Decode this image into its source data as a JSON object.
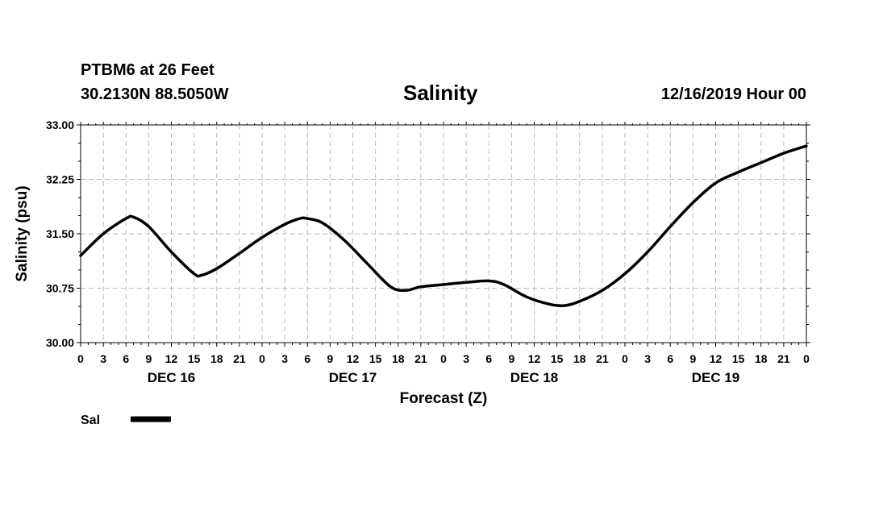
{
  "header": {
    "station": "PTBM6 at 26 Feet",
    "coords": "30.2130N 88.5050W",
    "title": "Salinity",
    "issued": "12/16/2019 Hour 00"
  },
  "chart_data": {
    "type": "line",
    "title": "Salinity",
    "xlabel": "Forecast (Z)",
    "ylabel": "Salinity (psu)",
    "ylim": [
      30.0,
      33.0
    ],
    "yticks": [
      "30.00",
      "30.75",
      "31.50",
      "32.25",
      "33.00"
    ],
    "x_hours": [
      0,
      96
    ],
    "xtick_labels": [
      "0",
      "3",
      "6",
      "9",
      "12",
      "15",
      "18",
      "21",
      "0",
      "3",
      "6",
      "9",
      "12",
      "15",
      "18",
      "21",
      "0",
      "3",
      "6",
      "9",
      "12",
      "15",
      "18",
      "21",
      "0",
      "3",
      "6",
      "9",
      "12",
      "15",
      "18",
      "21",
      "0"
    ],
    "day_labels": [
      "DEC 16",
      "DEC 17",
      "DEC 18",
      "DEC 19"
    ],
    "grid": true,
    "legend": {
      "placement": "bottom-left",
      "color": "#000000"
    },
    "series": [
      {
        "name": "Sal",
        "color": "#000000",
        "points": [
          [
            0,
            31.2
          ],
          [
            3,
            31.5
          ],
          [
            6,
            31.71
          ],
          [
            7,
            31.73
          ],
          [
            9,
            31.6
          ],
          [
            12,
            31.25
          ],
          [
            15,
            30.95
          ],
          [
            16,
            30.93
          ],
          [
            18,
            31.02
          ],
          [
            21,
            31.23
          ],
          [
            24,
            31.45
          ],
          [
            27,
            31.63
          ],
          [
            29,
            31.71
          ],
          [
            30,
            31.71
          ],
          [
            32,
            31.65
          ],
          [
            35,
            31.4
          ],
          [
            38,
            31.08
          ],
          [
            41,
            30.77
          ],
          [
            43,
            30.72
          ],
          [
            45,
            30.77
          ],
          [
            48,
            30.8
          ],
          [
            51,
            30.83
          ],
          [
            54,
            30.85
          ],
          [
            56,
            30.8
          ],
          [
            59,
            30.63
          ],
          [
            62,
            30.53
          ],
          [
            64,
            30.51
          ],
          [
            66,
            30.57
          ],
          [
            69,
            30.72
          ],
          [
            72,
            30.95
          ],
          [
            75,
            31.25
          ],
          [
            78,
            31.6
          ],
          [
            81,
            31.93
          ],
          [
            84,
            32.2
          ],
          [
            87,
            32.35
          ],
          [
            90,
            32.48
          ],
          [
            93,
            32.61
          ],
          [
            96,
            32.71
          ]
        ]
      }
    ]
  }
}
